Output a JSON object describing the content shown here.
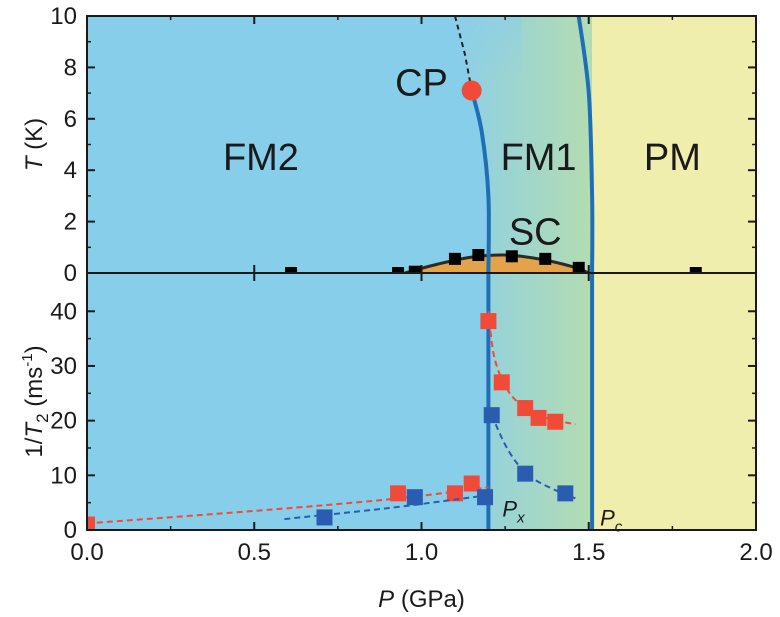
{
  "chart_data": [
    {
      "type": "scatter",
      "panel": "top",
      "ylabel": {
        "italic": "T",
        "rest": " (K)"
      },
      "xlim": [
        0.0,
        2.0
      ],
      "ylim": [
        0,
        10
      ],
      "yticks": [
        "0",
        "2",
        "4",
        "6",
        "8",
        "10"
      ],
      "grid": false,
      "regions": [
        {
          "label": "FM2",
          "color": "#87ceeb"
        },
        {
          "label": "FM1",
          "color": "#a8d8b9"
        },
        {
          "label": "PM",
          "color": "#f0eeac"
        },
        {
          "label": "SC",
          "color": "#e8a040"
        },
        {
          "label": "CP",
          "color": "#f04a38"
        }
      ],
      "series": [
        {
          "marker": "square",
          "color": "#000000",
          "points": [
            {
              "x": 0.61,
              "y": 0.0
            },
            {
              "x": 0.93,
              "y": 0.0
            },
            {
              "x": 0.98,
              "y": 0.05
            },
            {
              "x": 1.1,
              "y": 0.55
            },
            {
              "x": 1.17,
              "y": 0.7
            },
            {
              "x": 1.27,
              "y": 0.65
            },
            {
              "x": 1.37,
              "y": 0.55
            },
            {
              "x": 1.47,
              "y": 0.2
            },
            {
              "x": 1.82,
              "y": 0.0
            }
          ]
        }
      ],
      "critical_point": {
        "x": 1.15,
        "y": 7.1
      },
      "sc_dome": [
        [
          0.95,
          0.0
        ],
        [
          1.05,
          0.35
        ],
        [
          1.15,
          0.62
        ],
        [
          1.25,
          0.7
        ],
        [
          1.35,
          0.55
        ],
        [
          1.45,
          0.25
        ],
        [
          1.5,
          0.0
        ]
      ],
      "fm2_fm1_boundary": [
        [
          1.15,
          7.1
        ],
        [
          1.18,
          5.5
        ],
        [
          1.2,
          3.0
        ],
        [
          1.2,
          0.0
        ]
      ],
      "dashed_extension": [
        [
          1.1,
          10.0
        ],
        [
          1.13,
          8.5
        ],
        [
          1.15,
          7.1
        ]
      ],
      "fm1_pm_boundary": [
        [
          1.47,
          10.0
        ],
        [
          1.5,
          7.0
        ],
        [
          1.51,
          3.0
        ],
        [
          1.51,
          0.0
        ]
      ]
    },
    {
      "type": "scatter",
      "panel": "bottom",
      "xlabel": {
        "italic": "P",
        "rest": " (GPa)"
      },
      "ylabel": {
        "pre": "1/",
        "italic": "T",
        "sub": "2",
        "mid": " (ms",
        "sup": "-1",
        "post": ")"
      },
      "xlim": [
        0.0,
        2.0
      ],
      "ylim": [
        0,
        47
      ],
      "xticks": [
        "0.0",
        "0.5",
        "1.0",
        "1.5",
        "2.0"
      ],
      "yticks": [
        "0",
        "10",
        "20",
        "30",
        "40"
      ],
      "grid": false,
      "series": [
        {
          "color": "#f04a38",
          "marker": "square",
          "points": [
            {
              "x": 0.0,
              "y": 1.0
            },
            {
              "x": 0.93,
              "y": 6.7
            },
            {
              "x": 1.1,
              "y": 6.7
            },
            {
              "x": 1.15,
              "y": 8.5
            },
            {
              "x": 1.2,
              "y": 38.2
            },
            {
              "x": 1.24,
              "y": 27.0
            },
            {
              "x": 1.31,
              "y": 22.3
            },
            {
              "x": 1.35,
              "y": 20.5
            },
            {
              "x": 1.4,
              "y": 19.8
            }
          ],
          "fit_low": [
            [
              0.0,
              1.2
            ],
            [
              0.5,
              3.5
            ],
            [
              0.9,
              5.6
            ],
            [
              1.2,
              7.8
            ]
          ],
          "fit_high": [
            [
              1.2,
              40.0
            ],
            [
              1.22,
              31.0
            ],
            [
              1.27,
              24.5
            ],
            [
              1.35,
              21.0
            ],
            [
              1.46,
              19.3
            ]
          ]
        },
        {
          "color": "#2a5db0",
          "marker": "square",
          "points": [
            {
              "x": 0.71,
              "y": 2.3
            },
            {
              "x": 0.98,
              "y": 6.0
            },
            {
              "x": 1.19,
              "y": 6.0
            },
            {
              "x": 1.21,
              "y": 21.0
            },
            {
              "x": 1.31,
              "y": 10.3
            },
            {
              "x": 1.43,
              "y": 6.7
            }
          ],
          "fit_low": [
            [
              0.59,
              2.0
            ],
            [
              0.9,
              4.0
            ],
            [
              1.19,
              6.3
            ]
          ],
          "fit_high": [
            [
              1.21,
              21.0
            ],
            [
              1.26,
              14.5
            ],
            [
              1.32,
              10.0
            ],
            [
              1.4,
              7.3
            ],
            [
              1.46,
              5.8
            ]
          ]
        }
      ],
      "markers": [
        {
          "label": "P",
          "sub": "x",
          "x": 1.2
        },
        {
          "label": "P",
          "sub": "c",
          "x": 1.51
        }
      ]
    }
  ]
}
